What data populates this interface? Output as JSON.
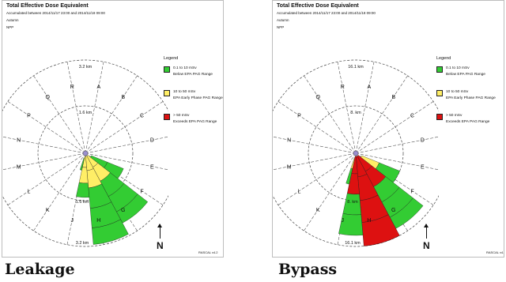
{
  "panels": [
    {
      "title": "Total Effective Dose Equivalent",
      "accumulated": "Accumulated between 2014/11/17 23:00 and 2014/11/18 09:00",
      "season": "Autumn",
      "site": "NPP",
      "outer_ring_label": "3.2 km",
      "inner_ring_label": "1.6 km",
      "lower_inner_label": "1.6 km",
      "lower_outer_label": "3.2 km",
      "sectors": [
        "R",
        "A",
        "B",
        "C",
        "D",
        "E",
        "F",
        "G",
        "H",
        "J",
        "K",
        "L",
        "M",
        "N",
        "P",
        "Q"
      ],
      "legend_title": "Legend",
      "legend": [
        {
          "line1": "0.1 to 10 mSv",
          "line2": "Below EPA PAG Range",
          "color": "#33cc33"
        },
        {
          "line1": "10 to 50 mSv",
          "line2": "EPA Early Phase PAG Range",
          "color": "#ffee66"
        },
        {
          "line1": "> 50 mSv",
          "line2": "Exceeds EPA PAG Range",
          "color": "#dd1111"
        }
      ],
      "north": "N",
      "version": "RASCAL v4.2",
      "caption": "Leakage"
    },
    {
      "title": "Total Effective Dose Equivalent",
      "accumulated": "Accumulated between 2014/11/17 23:00 and 2014/11/18 09:00",
      "season": "Autumn",
      "site": "NPP",
      "outer_ring_label": "16.1 km",
      "inner_ring_label": "8. km",
      "lower_inner_label": "8. km",
      "lower_outer_label": "16.1 km",
      "sectors": [
        "R",
        "A",
        "B",
        "C",
        "D",
        "E",
        "F",
        "G",
        "H",
        "J",
        "K",
        "L",
        "M",
        "N",
        "P",
        "Q"
      ],
      "legend_title": "Legend",
      "legend": [
        {
          "line1": "0.1 to 10 mSv",
          "line2": "Below EPA PAG Range",
          "color": "#33cc33"
        },
        {
          "line1": "10 to 50 mSv",
          "line2": "EPA Early Phase PAG Range",
          "color": "#ffee66"
        },
        {
          "line1": "> 50 mSv",
          "line2": "Exceeds EPA PAG Range",
          "color": "#dd1111"
        }
      ],
      "north": "N",
      "version": "RASCAL v4.",
      "caption": "Bypass"
    }
  ]
}
